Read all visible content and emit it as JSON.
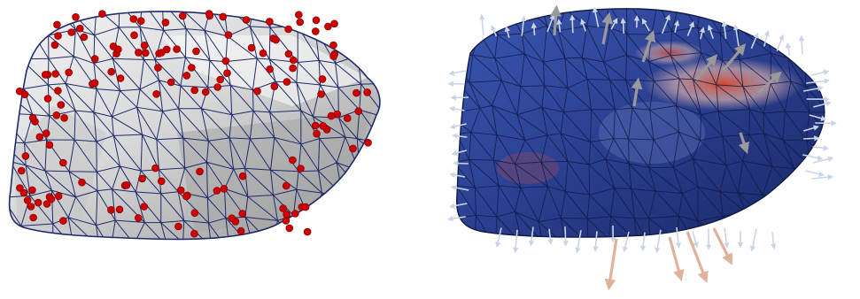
{
  "scene": {
    "background": "#ffffff",
    "panels": [
      {
        "id": "left",
        "object": "liver-surface-mesh",
        "mesh_color": "#1f2a6b",
        "surface_light": "#eeeeee",
        "surface_dark": "#9a9a9a",
        "marker_color": "#cc0000",
        "markers": "sampled-points"
      },
      {
        "id": "right",
        "object": "liver-surface-mesh-displacement",
        "surface_color": "#2a3f8f",
        "hot_color": "#d0301c",
        "arrow_light": "#b9c6dc",
        "arrow_warm": "#d9a58c",
        "arrow_gray": "#8e8e8e",
        "glyphs": "displacement-arrows"
      }
    ]
  }
}
